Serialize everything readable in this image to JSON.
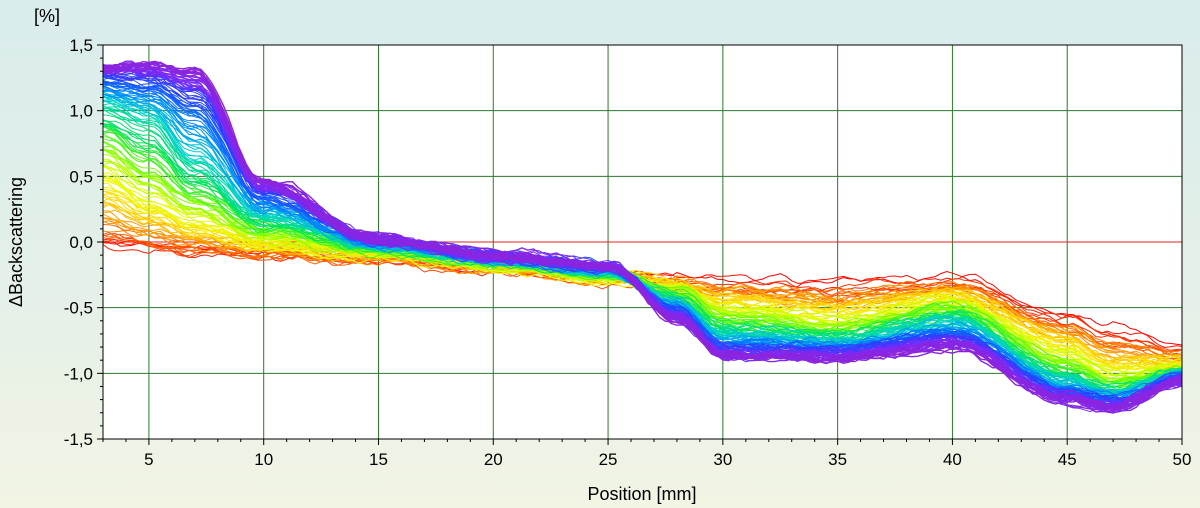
{
  "chart_data": {
    "type": "line",
    "title": "",
    "xlabel": "Position [mm]",
    "ylabel": "ΔBackscattering",
    "yunit": "[%]",
    "xlim": [
      3,
      50
    ],
    "ylim": [
      -1.5,
      1.5
    ],
    "xticks": [
      5,
      10,
      15,
      20,
      25,
      30,
      35,
      40,
      45,
      50
    ],
    "xtick_labels": [
      "5",
      "10",
      "15",
      "20",
      "25",
      "30",
      "35",
      "40",
      "45",
      "50"
    ],
    "yticks": [
      1.5,
      1.0,
      0.5,
      0.0,
      -0.5,
      -1.0,
      -1.5
    ],
    "ytick_labels": [
      "1,5",
      "1,0",
      "0,5",
      "0,0",
      "-0,5",
      "-1,0",
      "-1,5"
    ],
    "grid": true,
    "colormap": [
      "#ff0000",
      "#ff7a00",
      "#ffd800",
      "#e8ff00",
      "#7dff00",
      "#00e35a",
      "#00d2d2",
      "#0080ff",
      "#2a3cff",
      "#7a2aff",
      "#8e24d8"
    ],
    "grid_color": "#2a7a2a",
    "series": [
      {
        "x": [
          3,
          5,
          7,
          10,
          15,
          20,
          25,
          28,
          30,
          35,
          40,
          45,
          47,
          50
        ],
        "y": [
          -0.05,
          -0.05,
          -0.08,
          -0.1,
          -0.15,
          -0.2,
          -0.25,
          -0.28,
          -0.3,
          -0.32,
          -0.28,
          -0.55,
          -0.65,
          -0.8
        ]
      },
      {
        "x": [
          3,
          5,
          7,
          10,
          15,
          20,
          25,
          28,
          30,
          35,
          40,
          45,
          47,
          50
        ],
        "y": [
          0.2,
          0.1,
          0.0,
          -0.05,
          -0.1,
          -0.2,
          -0.27,
          -0.32,
          -0.4,
          -0.45,
          -0.38,
          -0.7,
          -0.85,
          -0.9
        ]
      },
      {
        "x": [
          3,
          5,
          7,
          10,
          15,
          20,
          25,
          28,
          30,
          35,
          40,
          45,
          47,
          50
        ],
        "y": [
          0.5,
          0.3,
          0.15,
          0.0,
          -0.08,
          -0.17,
          -0.26,
          -0.35,
          -0.5,
          -0.58,
          -0.45,
          -0.85,
          -1.0,
          -0.95
        ]
      },
      {
        "x": [
          3,
          5,
          7,
          10,
          15,
          20,
          25,
          28,
          30,
          35,
          40,
          45,
          47,
          50
        ],
        "y": [
          0.8,
          0.6,
          0.35,
          0.1,
          -0.05,
          -0.15,
          -0.24,
          -0.4,
          -0.6,
          -0.68,
          -0.52,
          -0.95,
          -1.1,
          -0.98
        ]
      },
      {
        "x": [
          3,
          5,
          7,
          10,
          15,
          20,
          25,
          28,
          30,
          35,
          40,
          45,
          47,
          50
        ],
        "y": [
          1.05,
          0.95,
          0.6,
          0.2,
          -0.03,
          -0.13,
          -0.22,
          -0.45,
          -0.7,
          -0.75,
          -0.6,
          -1.05,
          -1.15,
          -1.0
        ]
      },
      {
        "x": [
          3,
          5,
          7,
          10,
          15,
          20,
          25,
          28,
          30,
          35,
          40,
          45,
          47,
          50
        ],
        "y": [
          1.2,
          1.15,
          0.95,
          0.3,
          0.0,
          -0.12,
          -0.2,
          -0.5,
          -0.78,
          -0.8,
          -0.68,
          -1.12,
          -1.2,
          -1.02
        ]
      },
      {
        "x": [
          3,
          5,
          7,
          10,
          15,
          20,
          25,
          28,
          30,
          35,
          40,
          45,
          47,
          50
        ],
        "y": [
          1.3,
          1.3,
          1.2,
          0.42,
          0.02,
          -0.1,
          -0.18,
          -0.55,
          -0.84,
          -0.85,
          -0.75,
          -1.18,
          -1.25,
          -1.05
        ]
      },
      {
        "x": [
          3,
          5,
          7,
          10,
          15,
          20,
          25,
          28,
          30,
          35,
          40,
          45,
          47,
          50
        ],
        "y": [
          1.33,
          1.37,
          1.3,
          0.45,
          0.03,
          -0.1,
          -0.17,
          -0.58,
          -0.87,
          -0.88,
          -0.8,
          -1.2,
          -1.27,
          -1.05
        ]
      }
    ]
  }
}
